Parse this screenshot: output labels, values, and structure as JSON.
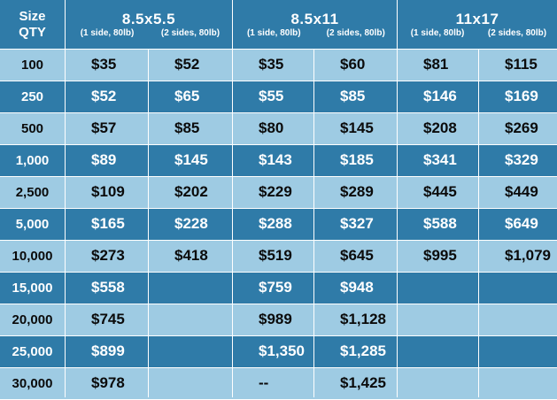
{
  "header": {
    "size_label": "Size",
    "qty_label": "QTY",
    "groups": [
      {
        "title": "8.5x5.5",
        "sub": [
          "(1 side, 80lb)",
          "(2 sides, 80lb)"
        ]
      },
      {
        "title": "8.5x11",
        "sub": [
          "(1 side, 80lb)",
          "(2 sides, 80lb)"
        ]
      },
      {
        "title": "11x17",
        "sub": [
          "(1 side, 80lb)",
          "(2 sides, 80lb)"
        ]
      }
    ]
  },
  "rows": [
    {
      "qty": "100",
      "prices": [
        "$35",
        "$52",
        "$35",
        "$60",
        "$81",
        "$115"
      ]
    },
    {
      "qty": "250",
      "prices": [
        "$52",
        "$65",
        "$55",
        "$85",
        "$146",
        "$169"
      ]
    },
    {
      "qty": "500",
      "prices": [
        "$57",
        "$85",
        "$80",
        "$145",
        "$208",
        "$269"
      ]
    },
    {
      "qty": "1,000",
      "prices": [
        "$89",
        "$145",
        "$143",
        "$185",
        "$341",
        "$329"
      ]
    },
    {
      "qty": "2,500",
      "prices": [
        "$109",
        "$202",
        "$229",
        "$289",
        "$445",
        "$449"
      ]
    },
    {
      "qty": "5,000",
      "prices": [
        "$165",
        "$228",
        "$288",
        "$327",
        "$588",
        "$649"
      ]
    },
    {
      "qty": "10,000",
      "prices": [
        "$273",
        "$418",
        "$519",
        "$645",
        "$995",
        "$1,079"
      ]
    },
    {
      "qty": "15,000",
      "prices": [
        "$558",
        "",
        "$759",
        "$948",
        "",
        ""
      ]
    },
    {
      "qty": "20,000",
      "prices": [
        "$745",
        "",
        "$989",
        "$1,128",
        "",
        ""
      ]
    },
    {
      "qty": "25,000",
      "prices": [
        "$899",
        "",
        "$1,350",
        "$1,285",
        "",
        ""
      ]
    },
    {
      "qty": "30,000",
      "prices": [
        "$978",
        "",
        "--",
        "$1,425",
        "",
        ""
      ]
    }
  ]
}
